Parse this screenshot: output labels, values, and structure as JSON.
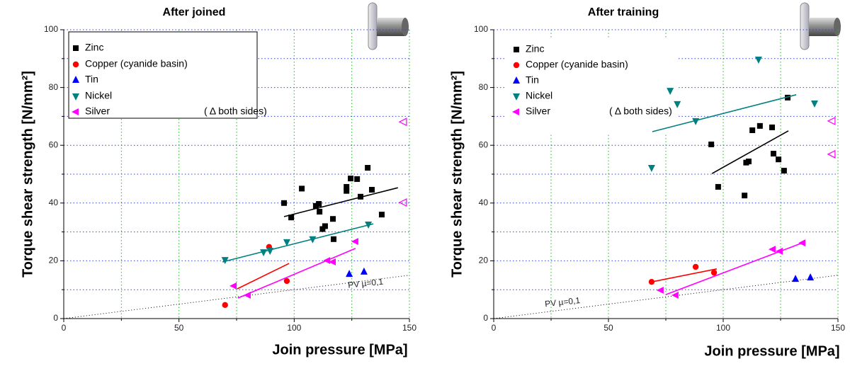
{
  "chart_data": [
    {
      "type": "scatter",
      "title": "After joined",
      "x_label": "Join pressure [MPa]",
      "y_label": "Torque shear strength [N/mm²]",
      "xlim": [
        0,
        150
      ],
      "ylim": [
        0,
        100
      ],
      "xticks": [
        0,
        50,
        100,
        150
      ],
      "yticks": [
        0,
        20,
        40,
        60,
        80,
        100
      ],
      "x_minor_ticks": [
        25,
        75,
        125
      ],
      "y_minor_ticks": [
        10,
        30,
        50,
        70,
        90
      ],
      "grid": true,
      "legend_box": true,
      "series": [
        {
          "name": "Zinc",
          "color": "#000000",
          "marker": "square",
          "x": [
            95.6,
            98.7,
            103.3,
            109.4,
            110.7,
            111,
            112.3,
            113.4,
            116.8,
            117.1,
            122.7,
            122.7,
            124.5,
            127.3,
            128.8,
            131.9,
            133.7,
            138
          ],
          "values": [
            40,
            35,
            45,
            39,
            39.7,
            37,
            31,
            32,
            34.5,
            27.5,
            44.2,
            45.6,
            48.5,
            48.3,
            42.2,
            52.2,
            44.6,
            36
          ],
          "trend": {
            "x": [
              95.6,
              145
            ],
            "values": [
              35.3,
              45.3
            ]
          }
        },
        {
          "name": "Copper (cyanide basin)",
          "color": "#ff0000",
          "marker": "circle",
          "x": [
            70,
            89.1,
            96.8
          ],
          "values": [
            4.7,
            24.8,
            13
          ],
          "trend": {
            "x": [
              75.3,
              97.8
            ],
            "values": [
              10.3,
              19.1
            ]
          }
        },
        {
          "name": "Tin",
          "color": "#0000ff",
          "marker": "triangle-up",
          "x": [
            123.9,
            130.3
          ],
          "values": [
            15.4,
            16.2
          ]
        },
        {
          "name": "Nickel",
          "color": "#008080",
          "marker": "triangle-down",
          "x": [
            70,
            86.7,
            89.5,
            96.8,
            108,
            132.2
          ],
          "values": [
            20.3,
            23,
            23.5,
            26.5,
            27.5,
            32.6
          ],
          "trend": {
            "x": [
              68.9,
              134.3
            ],
            "values": [
              19.6,
              32.8
            ]
          }
        },
        {
          "name": "Silver",
          "color": "#ff00ff",
          "marker": "triangle-left",
          "x": [
            73.8,
            79.9,
            114.4,
            116.8,
            126.6
          ],
          "values": [
            11.3,
            8.1,
            20.1,
            19.6,
            26.7
          ],
          "trend": {
            "x": [
              75.6,
              126.6
            ],
            "values": [
              7.1,
              24.3
            ]
          },
          "both_sides": {
            "label": "( Δ both sides)",
            "x": [
              147.5,
              147.5
            ],
            "values": [
              68.1,
              40.2
            ]
          }
        }
      ],
      "reference_line": {
        "label": "PV µ=0,1",
        "x": [
          0,
          150
        ],
        "values": [
          0,
          15
        ]
      }
    },
    {
      "type": "scatter",
      "title": "After training",
      "x_label": "Join pressure [MPa]",
      "y_label": "Torque shear strength [N/mm²]",
      "xlim": [
        0,
        150
      ],
      "ylim": [
        0,
        100
      ],
      "xticks": [
        0,
        50,
        100,
        150
      ],
      "yticks": [
        0,
        20,
        40,
        60,
        80,
        100
      ],
      "x_minor_ticks": [
        25,
        75,
        125
      ],
      "y_minor_ticks": [
        10,
        30,
        50,
        70,
        90
      ],
      "grid": true,
      "legend_box": false,
      "series": [
        {
          "name": "Zinc",
          "color": "#000000",
          "marker": "square",
          "x": [
            94.8,
            97.8,
            110,
            111.1,
            112.7,
            116,
            109.3,
            121.3,
            121.9,
            124.1,
            126.5,
            128.1
          ],
          "values": [
            60.3,
            45.6,
            54,
            54.4,
            65.2,
            66.7,
            42.6,
            66.2,
            57.1,
            55.1,
            51.2,
            76.5
          ],
          "trend": {
            "x": [
              95.1,
              128.4
            ],
            "values": [
              50.2,
              65
            ]
          }
        },
        {
          "name": "Copper (cyanide basin)",
          "color": "#ff0000",
          "marker": "circle",
          "x": [
            68.8,
            88,
            96
          ],
          "values": [
            12.7,
            17.9,
            15.9
          ],
          "trend": {
            "x": [
              68.8,
              97.2
            ],
            "values": [
              12.7,
              17.2
            ]
          }
        },
        {
          "name": "Tin",
          "color": "#0000ff",
          "marker": "triangle-up",
          "x": [
            131.5,
            138
          ],
          "values": [
            13.7,
            14.2
          ]
        },
        {
          "name": "Nickel",
          "color": "#008080",
          "marker": "triangle-down",
          "x": [
            68.8,
            76.9,
            80,
            88,
            115.4,
            139.8
          ],
          "values": [
            52.2,
            78.9,
            74.3,
            68.4,
            89.7,
            74.5
          ],
          "trend": {
            "x": [
              69.1,
              131.8
            ],
            "values": [
              64.7,
              77.5
            ]
          }
        },
        {
          "name": "Silver",
          "color": "#ff00ff",
          "marker": "triangle-left",
          "x": [
            72.8,
            79.3,
            121.6,
            124.7,
            134.6
          ],
          "values": [
            9.8,
            8.1,
            24,
            23.3,
            26.2
          ],
          "trend": {
            "x": [
              75,
              135.5
            ],
            "values": [
              8.3,
              26.5
            ]
          },
          "both_sides": {
            "label": "( Δ both sides)",
            "x": [
              147.5,
              147.5
            ],
            "values": [
              68.4,
              56.9
            ]
          }
        }
      ],
      "reference_line": {
        "label": "PV µ=0,1",
        "x": [
          0,
          150
        ],
        "values": [
          0,
          15
        ]
      }
    }
  ]
}
